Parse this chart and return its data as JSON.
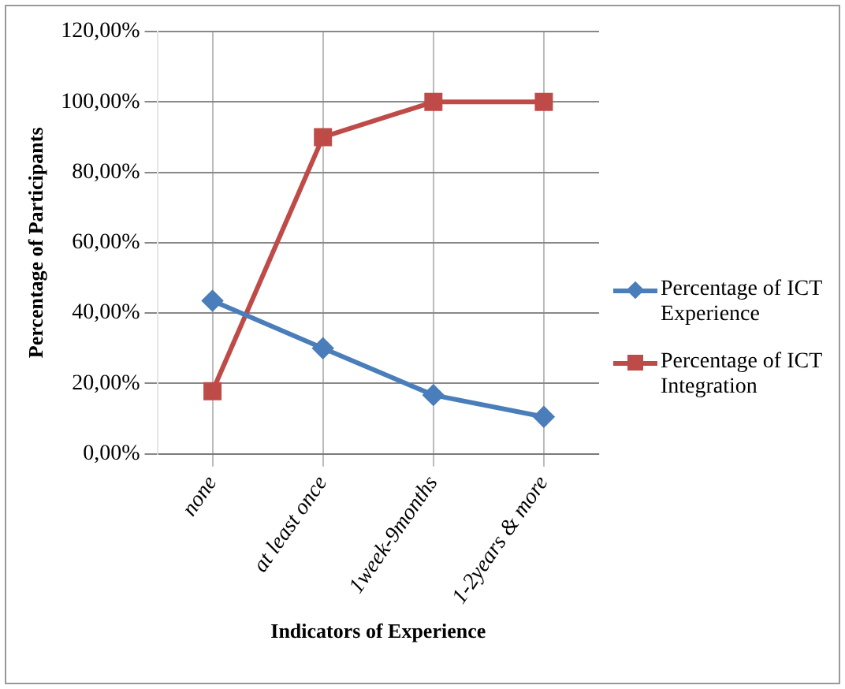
{
  "chart_data": {
    "type": "line",
    "xlabel": "Indicators of Experience",
    "ylabel": "Percentage of Participants",
    "categories": [
      "none",
      "at least once",
      "1week-9months",
      "1-2years & more"
    ],
    "series": [
      {
        "name": "Percentage of ICT Experience",
        "color": "#4a7ebb",
        "marker": "diamond",
        "values": [
          43.5,
          30,
          16.7,
          10.5
        ]
      },
      {
        "name": "Percentage of ICT Integration",
        "color": "#be4b48",
        "marker": "square",
        "values": [
          17.8,
          90,
          100,
          100
        ]
      }
    ],
    "ylim": [
      0,
      120
    ],
    "yticks": [
      {
        "value": 0,
        "label": "0,00%"
      },
      {
        "value": 20,
        "label": "20,00%"
      },
      {
        "value": 40,
        "label": "40,00%"
      },
      {
        "value": 60,
        "label": "60,00%"
      },
      {
        "value": 80,
        "label": "80,00%"
      },
      {
        "value": 100,
        "label": "100,00%"
      },
      {
        "value": 120,
        "label": "120,00%"
      }
    ],
    "grid": true,
    "legend": "right"
  }
}
